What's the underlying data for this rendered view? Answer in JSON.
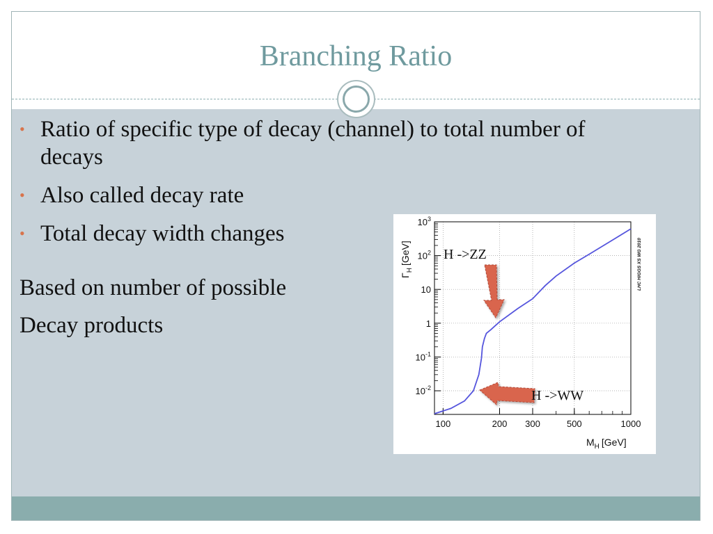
{
  "slide": {
    "title": "Branching Ratio",
    "bullets": [
      "Ratio of specific type of decay (channel) to total number of decays",
      "Also called decay rate",
      "Total decay width changes"
    ],
    "plain_lines": [
      "Based on number of possible",
      "Decay products"
    ]
  },
  "colors": {
    "title": "#6f9a9e",
    "content_bg": "#c7d2d9",
    "footer": "#8aadad",
    "bullet_dot": "#d8744c",
    "curve": "#5555dd",
    "arrow": "#d9654e"
  },
  "chart_data": {
    "type": "line",
    "xscale": "log",
    "yscale": "log",
    "xlabel_main": "M",
    "xlabel_sub": "H",
    "xlabel_unit": "[GeV]",
    "ylabel_main": "Γ",
    "ylabel_sub": "H",
    "ylabel_unit": "[GeV]",
    "watermark": "LHC HIGGS XS WG 2010",
    "xlim": [
      90,
      1000
    ],
    "ylim": [
      0.002,
      1000
    ],
    "x_ticks": [
      "100",
      "200",
      "300",
      "500",
      "1000"
    ],
    "y_ticks": [
      {
        "base": "10",
        "exp": "3"
      },
      {
        "base": "10",
        "exp": "2"
      },
      {
        "base": "10",
        "exp": ""
      },
      {
        "base": "1",
        "exp": ""
      },
      {
        "base": "10",
        "exp": "-1"
      },
      {
        "base": "10",
        "exp": "-2"
      }
    ],
    "annotations": [
      "H ->ZZ",
      "H ->WW"
    ],
    "series": [
      {
        "x": [
          90,
          110,
          130,
          145,
          155,
          160,
          162,
          166,
          170,
          180,
          190,
          200,
          250,
          300,
          350,
          400,
          500,
          600,
          800,
          1000
        ],
        "y": [
          0.0021,
          0.003,
          0.005,
          0.01,
          0.03,
          0.09,
          0.2,
          0.35,
          0.5,
          0.65,
          0.85,
          1.1,
          2.7,
          5.3,
          13,
          25,
          60,
          110,
          290,
          620
        ]
      }
    ]
  }
}
